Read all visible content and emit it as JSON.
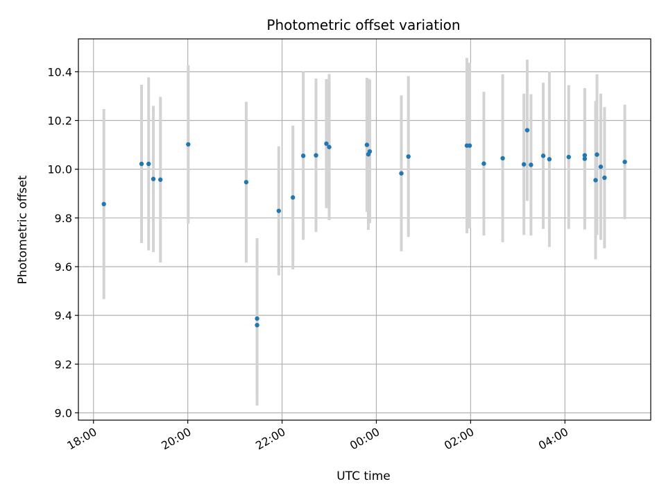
{
  "chart_data": {
    "type": "scatter",
    "title": "Photometric offset variation",
    "xlabel": "UTC time",
    "ylabel": "Photometric offset",
    "x_unit": "hours",
    "x_ticks": [
      {
        "value": 18,
        "label": "18:00"
      },
      {
        "value": 20,
        "label": "20:00"
      },
      {
        "value": 22,
        "label": "22:00"
      },
      {
        "value": 24,
        "label": "00:00"
      },
      {
        "value": 26,
        "label": "02:00"
      },
      {
        "value": 28,
        "label": "04:00"
      }
    ],
    "y_ticks": [
      {
        "value": 9.0,
        "label": "9.0"
      },
      {
        "value": 9.2,
        "label": "9.2"
      },
      {
        "value": 9.4,
        "label": "9.4"
      },
      {
        "value": 9.6,
        "label": "9.6"
      },
      {
        "value": 9.8,
        "label": "9.8"
      },
      {
        "value": 10.0,
        "label": "10.0"
      },
      {
        "value": 10.2,
        "label": "10.2"
      },
      {
        "value": 10.4,
        "label": "10.4"
      }
    ],
    "xlim": [
      17.68,
      29.82
    ],
    "ylim": [
      8.97,
      10.535
    ],
    "grid": true,
    "point_color": "#1f77b4",
    "errorbar_color": "#d3d3d3",
    "points": [
      {
        "x": 18.22,
        "y": 9.857,
        "yerr": 0.39
      },
      {
        "x": 19.02,
        "y": 10.022,
        "yerr": 0.325
      },
      {
        "x": 19.17,
        "y": 10.022,
        "yerr": 0.355
      },
      {
        "x": 19.27,
        "y": 9.96,
        "yerr": 0.3
      },
      {
        "x": 19.42,
        "y": 9.957,
        "yerr": 0.34
      },
      {
        "x": 20.01,
        "y": 10.102,
        "yerr": 0.325
      },
      {
        "x": 21.24,
        "y": 9.947,
        "yerr": 0.33
      },
      {
        "x": 21.47,
        "y": 9.387,
        "yerr": 0.33
      },
      {
        "x": 21.47,
        "y": 9.36,
        "yerr": 0.33
      },
      {
        "x": 21.93,
        "y": 9.829,
        "yerr": 0.265
      },
      {
        "x": 22.23,
        "y": 9.884,
        "yerr": 0.295
      },
      {
        "x": 22.45,
        "y": 10.055,
        "yerr": 0.345
      },
      {
        "x": 22.72,
        "y": 10.057,
        "yerr": 0.315
      },
      {
        "x": 22.94,
        "y": 10.105,
        "yerr": 0.265
      },
      {
        "x": 23.0,
        "y": 10.091,
        "yerr": 0.3
      },
      {
        "x": 23.8,
        "y": 10.1,
        "yerr": 0.275
      },
      {
        "x": 23.83,
        "y": 10.061,
        "yerr": 0.31
      },
      {
        "x": 23.86,
        "y": 10.073,
        "yerr": 0.295
      },
      {
        "x": 24.53,
        "y": 9.983,
        "yerr": 0.32
      },
      {
        "x": 24.68,
        "y": 10.052,
        "yerr": 0.33
      },
      {
        "x": 25.92,
        "y": 10.097,
        "yerr": 0.36
      },
      {
        "x": 25.98,
        "y": 10.097,
        "yerr": 0.34
      },
      {
        "x": 26.28,
        "y": 10.023,
        "yerr": 0.295
      },
      {
        "x": 26.68,
        "y": 10.045,
        "yerr": 0.345
      },
      {
        "x": 27.13,
        "y": 10.02,
        "yerr": 0.29
      },
      {
        "x": 27.2,
        "y": 10.16,
        "yerr": 0.29
      },
      {
        "x": 27.28,
        "y": 10.018,
        "yerr": 0.29
      },
      {
        "x": 27.54,
        "y": 10.055,
        "yerr": 0.3
      },
      {
        "x": 27.67,
        "y": 10.041,
        "yerr": 0.36
      },
      {
        "x": 28.08,
        "y": 10.05,
        "yerr": 0.295
      },
      {
        "x": 28.42,
        "y": 10.057,
        "yerr": 0.275
      },
      {
        "x": 28.42,
        "y": 10.043,
        "yerr": 0.29
      },
      {
        "x": 28.65,
        "y": 9.955,
        "yerr": 0.325
      },
      {
        "x": 28.68,
        "y": 10.06,
        "yerr": 0.33
      },
      {
        "x": 28.76,
        "y": 10.01,
        "yerr": 0.3
      },
      {
        "x": 28.84,
        "y": 9.965,
        "yerr": 0.29
      },
      {
        "x": 29.27,
        "y": 10.03,
        "yerr": 0.235
      }
    ]
  }
}
